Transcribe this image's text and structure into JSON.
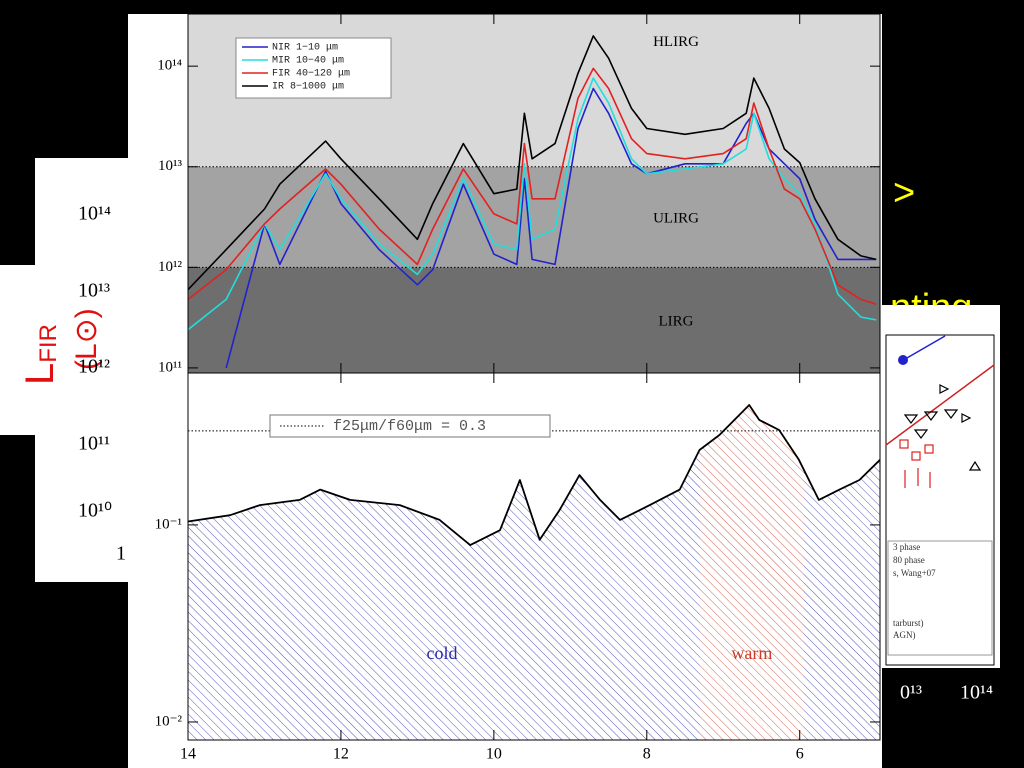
{
  "chart_data": [
    {
      "type": "line",
      "log": true,
      "xlim": [
        14,
        4.95
      ],
      "ylim": [
        89000000000.0,
        330000000000000.0
      ],
      "yticks": [
        {
          "value": 100000000000.0,
          "label": "10¹¹"
        },
        {
          "value": 1000000000000.0,
          "label": "10¹²"
        },
        {
          "value": 10000000000000.0,
          "label": "10¹³"
        },
        {
          "value": 100000000000000.0,
          "label": "10¹⁴"
        }
      ],
      "band_edges": [
        1000000000000.0,
        10000000000000.0
      ],
      "bands": [
        {
          "label": "LIRG",
          "color": "#6e6e6e"
        },
        {
          "label": "ULIRG",
          "color": "#a3a3a3"
        },
        {
          "label": "HLIRG",
          "color": "#d9d9d9"
        }
      ],
      "x": [
        14,
        13.5,
        13,
        12.8,
        12.2,
        12,
        11.5,
        11,
        10.8,
        10.4,
        10,
        9.7,
        9.6,
        9.5,
        9.2,
        8.9,
        8.7,
        8.5,
        8.2,
        8,
        7.5,
        7,
        6.7,
        6.6,
        6.4,
        6.2,
        6,
        5.8,
        5.5,
        5.2,
        5
      ],
      "series": [
        {
          "name": "NIR 1−10 μm",
          "color": "#2222cc",
          "values": [
            null,
            100000000000.0,
            2700000000000.0,
            1070000000000.0,
            9000000000000.0,
            4300000000000.0,
            1500000000000.0,
            670000000000.0,
            950000000000.0,
            6700000000000.0,
            1350000000000.0,
            1070000000000.0,
            7600000000000.0,
            1200000000000.0,
            1070000000000.0,
            24000000000000.0,
            60000000000000.0,
            34000000000000.0,
            10700000000000.0,
            8500000000000.0,
            10700000000000.0,
            10700000000000.0,
            27000000000000.0,
            34000000000000.0,
            15000000000000.0,
            10700000000000.0,
            7600000000000.0,
            3000000000000.0,
            1200000000000.0,
            1200000000000.0,
            1200000000000.0
          ]
        },
        {
          "name": "MIR 10−40 μm",
          "color": "#22dddd",
          "values": [
            240000000000.0,
            480000000000.0,
            2700000000000.0,
            1500000000000.0,
            8500000000000.0,
            4800000000000.0,
            1700000000000.0,
            850000000000.0,
            1350000000000.0,
            7600000000000.0,
            1700000000000.0,
            1500000000000.0,
            10700000000000.0,
            1900000000000.0,
            2400000000000.0,
            30000000000000.0,
            76000000000000.0,
            43000000000000.0,
            12000000000000.0,
            8500000000000.0,
            9500000000000.0,
            10700000000000.0,
            15000000000000.0,
            34000000000000.0,
            12000000000000.0,
            7600000000000.0,
            5400000000000.0,
            2700000000000.0,
            540000000000.0,
            320000000000.0,
            300000000000.0
          ]
        },
        {
          "name": "FIR 40−120 μm",
          "color": "#e02222",
          "values": [
            480000000000.0,
            950000000000.0,
            2700000000000.0,
            3800000000000.0,
            9500000000000.0,
            6700000000000.0,
            2400000000000.0,
            1070000000000.0,
            2400000000000.0,
            9500000000000.0,
            3400000000000.0,
            2700000000000.0,
            17000000000000.0,
            4800000000000.0,
            4800000000000.0,
            48000000000000.0,
            95000000000000.0,
            60000000000000.0,
            19000000000000.0,
            13500000000000.0,
            12000000000000.0,
            13500000000000.0,
            19000000000000.0,
            43000000000000.0,
            15000000000000.0,
            6000000000000.0,
            4800000000000.0,
            2400000000000.0,
            670000000000.0,
            480000000000.0,
            430000000000.0
          ]
        },
        {
          "name": "IR 8−1000 μm",
          "color": "#000000",
          "values": [
            600000000000.0,
            1500000000000.0,
            3800000000000.0,
            6700000000000.0,
            18000000000000.0,
            12000000000000.0,
            4800000000000.0,
            1900000000000.0,
            4300000000000.0,
            17000000000000.0,
            5400000000000.0,
            6000000000000.0,
            34000000000000.0,
            12000000000000.0,
            17000000000000.0,
            85000000000000.0,
            200000000000000.0,
            120000000000000.0,
            38000000000000.0,
            24000000000000.0,
            21000000000000.0,
            24000000000000.0,
            34000000000000.0,
            76000000000000.0,
            38000000000000.0,
            15000000000000.0,
            11000000000000.0,
            4800000000000.0,
            1900000000000.0,
            1300000000000.0,
            1200000000000.0
          ]
        }
      ]
    },
    {
      "type": "line",
      "log": true,
      "xlim": [
        14,
        4.95
      ],
      "ylim": [
        0.0081,
        0.59
      ],
      "xticks": [
        14,
        12,
        10,
        8,
        6
      ],
      "yticks": [
        {
          "value": 0.01,
          "label": "10⁻²"
        },
        {
          "value": 0.1,
          "label": "10⁻¹"
        }
      ],
      "x": [
        14,
        13.45,
        13.06,
        12.54,
        12.27,
        11.88,
        11.23,
        10.71,
        10.31,
        9.92,
        9.66,
        9.4,
        9.14,
        8.88,
        8.61,
        8.35,
        7.96,
        7.57,
        7.31,
        7.05,
        6.66,
        6.53,
        6.27,
        6.01,
        5.75,
        5.48,
        5.22,
        4.95
      ],
      "values": [
        0.104,
        0.112,
        0.126,
        0.134,
        0.151,
        0.134,
        0.126,
        0.106,
        0.079,
        0.094,
        0.169,
        0.084,
        0.119,
        0.179,
        0.134,
        0.106,
        0.126,
        0.151,
        0.24,
        0.286,
        0.406,
        0.341,
        0.303,
        0.214,
        0.134,
        0.151,
        0.169,
        0.214
      ],
      "color": "#000000",
      "threshold": {
        "value": 0.3,
        "label": "f25μm/f60μm = 0.3"
      },
      "regions": [
        {
          "label": "cold",
          "color": "#2a2aa8"
        },
        {
          "label": "warm",
          "color": "#c83c28",
          "xrange": [
            7.3,
            5.95
          ]
        }
      ]
    }
  ],
  "background": {
    "left_axis_labels": [
      "10¹⁴",
      "10¹³",
      "10¹²",
      "10¹¹",
      "10¹⁰",
      "1"
    ],
    "ylabel": "L",
    "ylabel_sub": "FIR",
    "ylabel_unit": "(L⊙)",
    "yellow_fragments": [
      ">",
      "nting"
    ],
    "right_legend": [
      "3 phase",
      "80 phase",
      "s, Wang+07",
      "tarburst)",
      "AGN)"
    ],
    "right_axis_labels": [
      "0¹³",
      "10¹⁴"
    ]
  }
}
